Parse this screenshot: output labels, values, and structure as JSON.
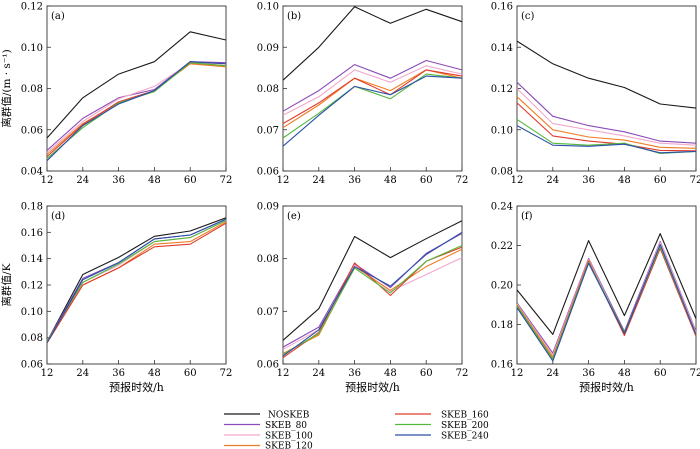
{
  "colors": {
    "NOSKEB": "#1a1a1a",
    "SKEB_80": "#8a4bb8",
    "SKEB_100": "#f2a8cc",
    "SKEB_120": "#f07c22",
    "SKEB_160": "#e03c2e",
    "SKEB_200": "#54b83c",
    "SKEB_240": "#2b4fa8"
  },
  "legend": {
    "placement": "bottom",
    "items": [
      "NOSKEB",
      "SKEB_80",
      "SKEB_100",
      "SKEB_120",
      "SKEB_160",
      "SKEB_200",
      "SKEB_240"
    ]
  },
  "chart_data": [
    {
      "type": "line",
      "label": "(a)",
      "ylabel": "离群值/(m · s⁻¹)",
      "xlabel": "",
      "x": [
        12,
        24,
        36,
        48,
        60,
        72
      ],
      "xticks": [
        "12",
        "24",
        "36",
        "48",
        "60",
        "72"
      ],
      "ylim": [
        0.04,
        0.12
      ],
      "yticks": [
        "0.04",
        "0.06",
        "0.08",
        "0.10",
        "0.12"
      ],
      "series": [
        {
          "name": "NOSKEB",
          "values": [
            0.056,
            0.0755,
            0.087,
            0.093,
            0.1075,
            0.1035
          ]
        },
        {
          "name": "SKEB_80",
          "values": [
            0.05,
            0.0655,
            0.0755,
            0.0795,
            0.093,
            0.0925
          ]
        },
        {
          "name": "SKEB_100",
          "values": [
            0.049,
            0.064,
            0.075,
            0.081,
            0.0925,
            0.092
          ]
        },
        {
          "name": "SKEB_120",
          "values": [
            0.048,
            0.063,
            0.073,
            0.079,
            0.092,
            0.0905
          ]
        },
        {
          "name": "SKEB_160",
          "values": [
            0.047,
            0.0625,
            0.0735,
            0.079,
            0.0925,
            0.091
          ]
        },
        {
          "name": "SKEB_200",
          "values": [
            0.046,
            0.061,
            0.073,
            0.0785,
            0.0925,
            0.091
          ]
        },
        {
          "name": "SKEB_240",
          "values": [
            0.045,
            0.062,
            0.0725,
            0.079,
            0.093,
            0.092
          ]
        }
      ]
    },
    {
      "type": "line",
      "label": "(b)",
      "ylabel": "",
      "xlabel": "",
      "x": [
        12,
        24,
        36,
        48,
        60,
        72
      ],
      "xticks": [
        "12",
        "24",
        "36",
        "48",
        "60",
        "72"
      ],
      "ylim": [
        0.06,
        0.1
      ],
      "yticks": [
        "0.06",
        "0.07",
        "0.08",
        "0.09",
        "0.10"
      ],
      "series": [
        {
          "name": "NOSKEB",
          "values": [
            0.082,
            0.09,
            0.0998,
            0.0958,
            0.0992,
            0.0962
          ]
        },
        {
          "name": "SKEB_80",
          "values": [
            0.0745,
            0.0795,
            0.0858,
            0.0825,
            0.0868,
            0.0845
          ]
        },
        {
          "name": "SKEB_100",
          "values": [
            0.0735,
            0.078,
            0.0845,
            0.0815,
            0.0855,
            0.0835
          ]
        },
        {
          "name": "SKEB_120",
          "values": [
            0.0705,
            0.076,
            0.0825,
            0.0795,
            0.0845,
            0.0825
          ]
        },
        {
          "name": "SKEB_160",
          "values": [
            0.0715,
            0.0765,
            0.0825,
            0.0785,
            0.0845,
            0.083
          ]
        },
        {
          "name": "SKEB_200",
          "values": [
            0.068,
            0.074,
            0.0805,
            0.0775,
            0.0835,
            0.0825
          ]
        },
        {
          "name": "SKEB_240",
          "values": [
            0.066,
            0.0735,
            0.0805,
            0.0785,
            0.083,
            0.0825
          ]
        }
      ]
    },
    {
      "type": "line",
      "label": "(c)",
      "ylabel": "",
      "xlabel": "",
      "x": [
        12,
        24,
        36,
        48,
        60,
        72
      ],
      "xticks": [
        "12",
        "24",
        "36",
        "48",
        "60",
        "72"
      ],
      "ylim": [
        0.08,
        0.16
      ],
      "yticks": [
        "0.08",
        "0.10",
        "0.12",
        "0.14",
        "0.16"
      ],
      "series": [
        {
          "name": "NOSKEB",
          "values": [
            0.143,
            0.132,
            0.125,
            0.1205,
            0.1125,
            0.1105
          ]
        },
        {
          "name": "SKEB_80",
          "values": [
            0.123,
            0.1065,
            0.102,
            0.099,
            0.0945,
            0.0935
          ]
        },
        {
          "name": "SKEB_100",
          "values": [
            0.12,
            0.103,
            0.1,
            0.097,
            0.0935,
            0.0925
          ]
        },
        {
          "name": "SKEB_120",
          "values": [
            0.116,
            0.1,
            0.0965,
            0.095,
            0.0915,
            0.091
          ]
        },
        {
          "name": "SKEB_160",
          "values": [
            0.113,
            0.097,
            0.0945,
            0.093,
            0.09,
            0.0898
          ]
        },
        {
          "name": "SKEB_200",
          "values": [
            0.105,
            0.0935,
            0.0925,
            0.0935,
            0.0885,
            0.0895
          ]
        },
        {
          "name": "SKEB_240",
          "values": [
            0.102,
            0.0925,
            0.092,
            0.093,
            0.0888,
            0.0895
          ]
        }
      ]
    },
    {
      "type": "line",
      "label": "(d)",
      "ylabel": "离群值/K",
      "xlabel": "预报时效/h",
      "x": [
        12,
        24,
        36,
        48,
        60,
        72
      ],
      "xticks": [
        "12",
        "24",
        "36",
        "48",
        "60",
        "72"
      ],
      "ylim": [
        0.06,
        0.18
      ],
      "yticks": [
        "0.06",
        "0.08",
        "0.10",
        "0.12",
        "0.14",
        "0.16",
        "0.18"
      ],
      "series": [
        {
          "name": "NOSKEB",
          "values": [
            0.077,
            0.128,
            0.141,
            0.157,
            0.161,
            0.171
          ]
        },
        {
          "name": "SKEB_80",
          "values": [
            0.077,
            0.125,
            0.137,
            0.155,
            0.158,
            0.17
          ]
        },
        {
          "name": "SKEB_100",
          "values": [
            0.077,
            0.122,
            0.135,
            0.153,
            0.156,
            0.169
          ]
        },
        {
          "name": "SKEB_120",
          "values": [
            0.076,
            0.12,
            0.133,
            0.151,
            0.153,
            0.168
          ]
        },
        {
          "name": "SKEB_160",
          "values": [
            0.076,
            0.12,
            0.133,
            0.149,
            0.151,
            0.167
          ]
        },
        {
          "name": "SKEB_200",
          "values": [
            0.077,
            0.122,
            0.136,
            0.153,
            0.156,
            0.169
          ]
        },
        {
          "name": "SKEB_240",
          "values": [
            0.076,
            0.124,
            0.137,
            0.155,
            0.158,
            0.17
          ]
        }
      ]
    },
    {
      "type": "line",
      "label": "(e)",
      "ylabel": "",
      "xlabel": "预报时效/h",
      "x": [
        12,
        24,
        36,
        48,
        60,
        72
      ],
      "xticks": [
        "12",
        "24",
        "36",
        "48",
        "60",
        "72"
      ],
      "ylim": [
        0.06,
        0.09
      ],
      "yticks": [
        "0.06",
        "0.07",
        "0.08",
        "0.09"
      ],
      "series": [
        {
          "name": "NOSKEB",
          "values": [
            0.0645,
            0.0705,
            0.0842,
            0.0802,
            0.0838,
            0.0872
          ]
        },
        {
          "name": "SKEB_80",
          "values": [
            0.0632,
            0.067,
            0.079,
            0.0745,
            0.081,
            0.0848
          ]
        },
        {
          "name": "SKEB_100",
          "values": [
            0.0628,
            0.0665,
            0.0788,
            0.0738,
            0.077,
            0.0802
          ]
        },
        {
          "name": "SKEB_120",
          "values": [
            0.062,
            0.0655,
            0.0785,
            0.074,
            0.0785,
            0.0818
          ]
        },
        {
          "name": "SKEB_160",
          "values": [
            0.0612,
            0.066,
            0.0792,
            0.073,
            0.0795,
            0.0822
          ]
        },
        {
          "name": "SKEB_200",
          "values": [
            0.0618,
            0.0658,
            0.0782,
            0.0735,
            0.0795,
            0.0825
          ]
        },
        {
          "name": "SKEB_240",
          "values": [
            0.0615,
            0.0665,
            0.0785,
            0.0748,
            0.0808,
            0.085
          ]
        }
      ]
    },
    {
      "type": "line",
      "label": "(f)",
      "ylabel": "",
      "xlabel": "预报时效/h",
      "x": [
        12,
        24,
        36,
        48,
        60,
        72
      ],
      "xticks": [
        "12",
        "24",
        "36",
        "48",
        "60",
        "72"
      ],
      "ylim": [
        0.16,
        0.24
      ],
      "yticks": [
        "0.16",
        "0.18",
        "0.20",
        "0.22",
        "0.24"
      ],
      "series": [
        {
          "name": "NOSKEB",
          "values": [
            0.1975,
            0.175,
            0.2225,
            0.1845,
            0.226,
            0.183
          ]
        },
        {
          "name": "SKEB_80",
          "values": [
            0.191,
            0.1655,
            0.2135,
            0.1765,
            0.222,
            0.1765
          ]
        },
        {
          "name": "SKEB_100",
          "values": [
            0.1905,
            0.1645,
            0.213,
            0.1755,
            0.2215,
            0.176
          ]
        },
        {
          "name": "SKEB_120",
          "values": [
            0.19,
            0.1635,
            0.2125,
            0.1745,
            0.2195,
            0.1745
          ]
        },
        {
          "name": "SKEB_160",
          "values": [
            0.189,
            0.1625,
            0.212,
            0.1745,
            0.2185,
            0.174
          ]
        },
        {
          "name": "SKEB_200",
          "values": [
            0.1895,
            0.1625,
            0.2115,
            0.176,
            0.2195,
            0.175
          ]
        },
        {
          "name": "SKEB_240",
          "values": [
            0.1885,
            0.1615,
            0.211,
            0.1755,
            0.2205,
            0.175
          ]
        }
      ]
    }
  ]
}
